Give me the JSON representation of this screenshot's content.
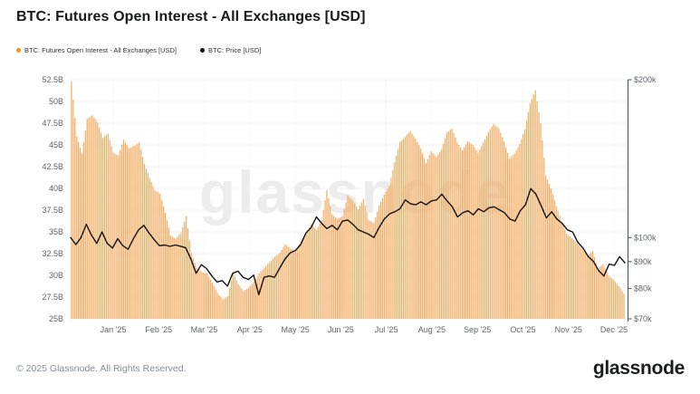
{
  "header": {
    "title": "BTC: Futures Open Interest - All Exchanges [USD]"
  },
  "legend": [
    {
      "label": "BTC: Futures Open Interest - All Exchanges [USD]",
      "color": "#f7931a"
    },
    {
      "label": "BTC: Price [USD]",
      "color": "#111111"
    }
  ],
  "watermark": {
    "text": "glassnode"
  },
  "footer": {
    "copyright": "© 2025 Glassnode. All Rights Reserved.",
    "logo_text": "glassnode"
  },
  "chart_data": {
    "type": "bar+line",
    "title": "BTC: Futures Open Interest - All Exchanges [USD]",
    "x_description": "Time, Jan 2025 through Dec 2025, sampled about every 3.4 days (107 points)",
    "x_ticks": [
      "Jan '25",
      "Feb '25",
      "Mar '25",
      "Apr '25",
      "May '25",
      "Jun '25",
      "Jul '25",
      "Aug '25",
      "Sep '25",
      "Oct '25",
      "Nov '25",
      "Dec '25"
    ],
    "grid": "faint horizontal lines at left-axis ticks",
    "legend_position": "top-left",
    "left_axis": {
      "unit": "billion USD (open interest)",
      "min": 25,
      "max": 52.5,
      "scale": "linear",
      "ticks": [
        {
          "label": "52.5B",
          "value": 52.5
        },
        {
          "label": "50B",
          "value": 50
        },
        {
          "label": "47.5B",
          "value": 47.5
        },
        {
          "label": "45B",
          "value": 45
        },
        {
          "label": "42.5B",
          "value": 42.5
        },
        {
          "label": "40B",
          "value": 40
        },
        {
          "label": "37.5B",
          "value": 37.5
        },
        {
          "label": "35B",
          "value": 35
        },
        {
          "label": "32.5B",
          "value": 32.5
        },
        {
          "label": "30B",
          "value": 30
        },
        {
          "label": "27.5B",
          "value": 27.5
        },
        {
          "label": "25B",
          "value": 25
        }
      ]
    },
    "right_axis": {
      "unit": "thousand USD (BTC price)",
      "min": 70,
      "max": 200,
      "scale": "log",
      "ticks": [
        {
          "label": "$200k",
          "value": 200
        },
        {
          "label": "$100k",
          "value": 100
        },
        {
          "label": "$90k",
          "value": 90
        },
        {
          "label": "$80k",
          "value": 80
        },
        {
          "label": "$70k",
          "value": 70
        }
      ]
    },
    "series": [
      {
        "name": "BTC: Futures Open Interest - All Exchanges [USD]",
        "type": "bar",
        "axis": "left",
        "unit": "billion USD",
        "color": "#f1a24d",
        "values": [
          52.3,
          46,
          44,
          48,
          48.4,
          47.6,
          45.8,
          46.3,
          44.1,
          43.8,
          45.6,
          44.6,
          44.9,
          45.3,
          42.8,
          41.2,
          39.8,
          39.4,
          37.2,
          34.6,
          34.2,
          34.9,
          36.8,
          32.6,
          30.9,
          30.4,
          30.2,
          29.2,
          28,
          27.2,
          27.6,
          30.3,
          29,
          28.2,
          28.6,
          29.3,
          30.2,
          30.9,
          31.5,
          32.1,
          32.6,
          33.6,
          33.1,
          32.8,
          33.9,
          34.8,
          35.9,
          35.2,
          36.3,
          39.8,
          37,
          36.5,
          36.8,
          39.2,
          38.6,
          37.6,
          38.8,
          36.4,
          36,
          38,
          39.3,
          40.3,
          43,
          45.3,
          45.9,
          46.6,
          45.7,
          44.6,
          42.9,
          44.3,
          43.6,
          44.5,
          46.4,
          46.9,
          45.3,
          44.4,
          45.4,
          45,
          44.1,
          45.2,
          46.5,
          47.4,
          46.9,
          45.4,
          43.4,
          44,
          45.1,
          46.8,
          49.8,
          51.3,
          47.5,
          41.5,
          40,
          38,
          36.2,
          34.8,
          34.3,
          33.7,
          33,
          32.3,
          32.8,
          30.8,
          31.3,
          30,
          29.5,
          28.8,
          27.9
        ]
      },
      {
        "name": "BTC: Price [USD]",
        "type": "line",
        "axis": "right",
        "unit": "thousand USD",
        "color": "#121212",
        "values": [
          100,
          97,
          100,
          106,
          101,
          97.5,
          102.5,
          97.5,
          95.5,
          99.5,
          96.5,
          95,
          99.5,
          103.5,
          105.5,
          102,
          99,
          96.5,
          96.8,
          96.2,
          96.8,
          96.3,
          95.6,
          91,
          85.5,
          88.8,
          87.3,
          84.5,
          82.3,
          82.8,
          80.8,
          85.5,
          86.3,
          84,
          83.2,
          84.8,
          77.8,
          84,
          84.5,
          84,
          87.5,
          91,
          93.5,
          94.5,
          97,
          102,
          104.5,
          109.5,
          106.5,
          104,
          105.5,
          103.5,
          107.5,
          108,
          106,
          103.5,
          102.5,
          101.5,
          100,
          104.5,
          108.5,
          111,
          112,
          113.5,
          118,
          116,
          115.5,
          117,
          115.5,
          117.5,
          118,
          121,
          117.5,
          114.5,
          109.5,
          111.5,
          112.5,
          110.5,
          113.5,
          112,
          114,
          114.5,
          113,
          111.5,
          108.5,
          107.5,
          112.5,
          115.5,
          124,
          121,
          115,
          109,
          112,
          108.5,
          106.5,
          103.5,
          102.5,
          98,
          95.5,
          92,
          90,
          86.5,
          84.5,
          89,
          88.5,
          92,
          89.5
        ]
      }
    ]
  }
}
